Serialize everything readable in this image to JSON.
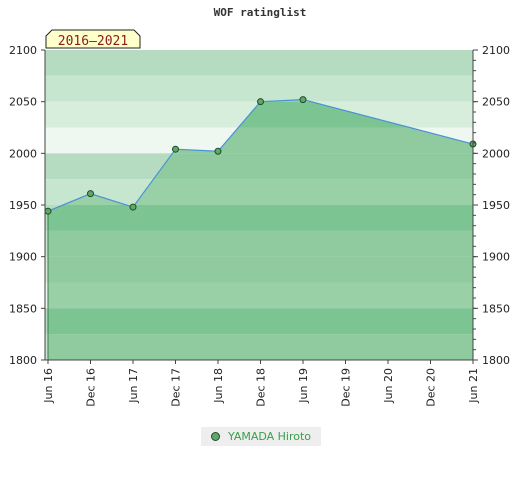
{
  "chart_data": {
    "type": "area",
    "title": "WOF ratinglist",
    "period_label": "2016–2021",
    "x_ticks": [
      "Jun 16",
      "Dec 16",
      "Jun 17",
      "Dec 17",
      "Jun 18",
      "Dec 18",
      "Jun 19",
      "Dec 19",
      "Jun 20",
      "Dec 20",
      "Jun 21"
    ],
    "y_ticks": [
      1800,
      1850,
      1900,
      1950,
      2000,
      2050,
      2100
    ],
    "ylim": [
      1800,
      2100
    ],
    "series": [
      {
        "name": "YAMADA Hiroto",
        "color": "#5fa86a",
        "line_color": "#4a90d9",
        "points": [
          {
            "x": "Jun 16",
            "y": 1944
          },
          {
            "x": "Dec 16",
            "y": 1961
          },
          {
            "x": "Jun 17",
            "y": 1948
          },
          {
            "x": "Dec 17",
            "y": 2004
          },
          {
            "x": "Jun 18",
            "y": 2002
          },
          {
            "x": "Dec 18",
            "y": 2050
          },
          {
            "x": "Jun 19",
            "y": 2052
          },
          {
            "x": "Jun 21",
            "y": 2009
          }
        ]
      }
    ],
    "legend": "bottom-center"
  }
}
